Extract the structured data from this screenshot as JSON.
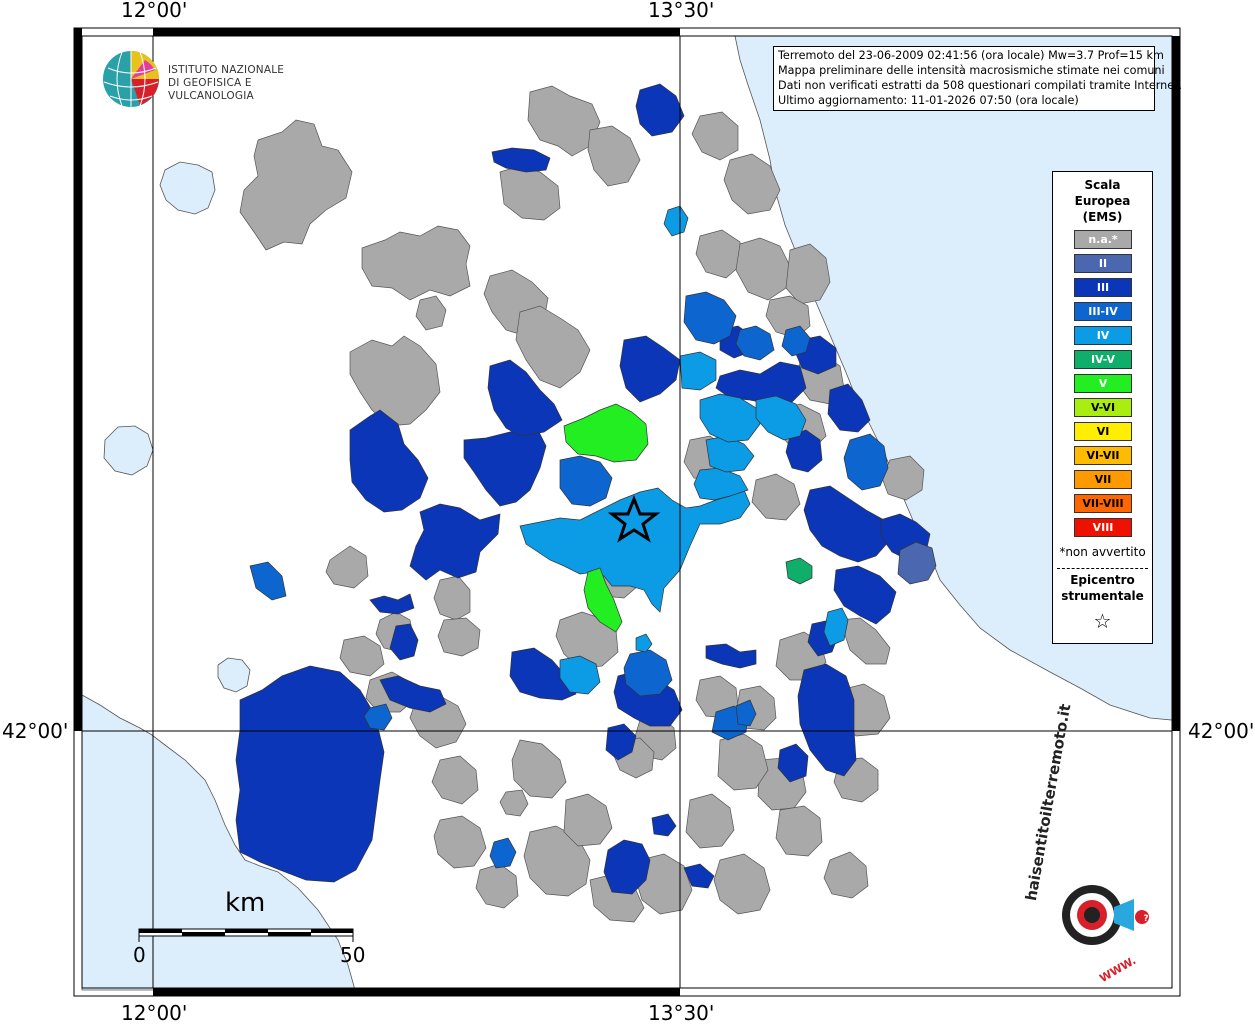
{
  "coords": {
    "top_left": "12°00'",
    "top_right": "13°30'",
    "bottom_left": "12°00'",
    "bottom_right": "13°30'",
    "left_lat": "42°00'",
    "right_lat": "42°00'"
  },
  "info": {
    "line1": "Terremoto del 23-06-2009 02:41:56 (ora locale) Mw=3.7 Prof=15 km",
    "line2": "Mappa preliminare delle intensità macrosismiche stimate nei comuni",
    "line3": "Dati non verificati estratti da 508 questionari compilati tramite Internet.",
    "line4": "Ultimo aggiornamento: 11-01-2026 07:50 (ora locale)"
  },
  "logo": {
    "line1": "ISTITUTO NAZIONALE",
    "line2": "DI GEOFISICA E VULCANOLOGIA"
  },
  "legend": {
    "title1": "Scala",
    "title2": "Europea",
    "title3": "(EMS)",
    "items": [
      {
        "label": "n.a.*",
        "color": "#a9a9a9"
      },
      {
        "label": "II",
        "color": "#4a67b0"
      },
      {
        "label": "III",
        "color": "#0b36b8"
      },
      {
        "label": "III-IV",
        "color": "#0d66d0"
      },
      {
        "label": "IV",
        "color": "#0c9ce6"
      },
      {
        "label": "IV-V",
        "color": "#0fae6a"
      },
      {
        "label": "V",
        "color": "#22ee22"
      },
      {
        "label": "V-VI",
        "color": "#aaee11"
      },
      {
        "label": "VI",
        "color": "#ffee00"
      },
      {
        "label": "VI-VII",
        "color": "#ffbb00"
      },
      {
        "label": "VII",
        "color": "#ff9900"
      },
      {
        "label": "VII-VIII",
        "color": "#ff6600"
      },
      {
        "label": "VIII",
        "color": "#ee1100"
      }
    ],
    "note": "*non avvertito",
    "epicenter1": "Epicentro",
    "epicenter2": "strumentale",
    "star": "☆"
  },
  "scale": {
    "unit": "km",
    "start": "0",
    "end": "50"
  },
  "hsit_logo": {
    "text": "haisentitoilterremoto.it",
    "www": "WWW."
  },
  "colors": {
    "sea": "#dceefb",
    "land": "#ffffff",
    "grid": "#000000"
  }
}
